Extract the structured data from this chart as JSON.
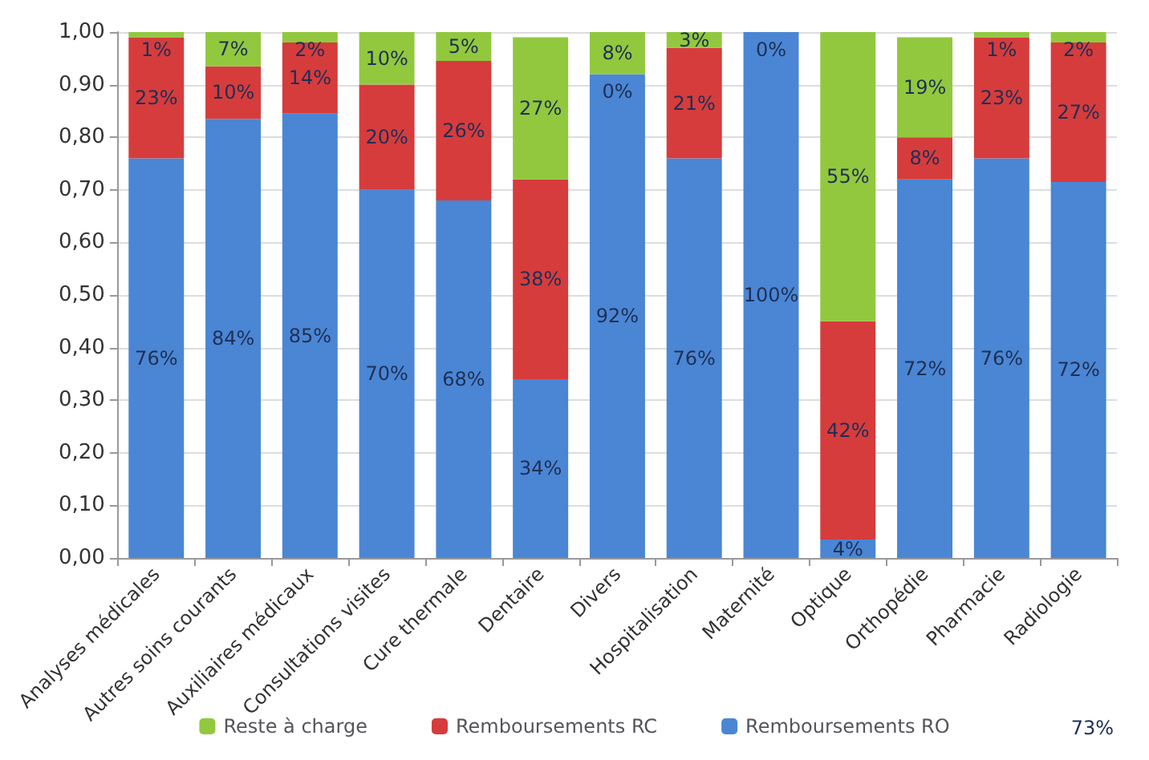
{
  "chart_data": {
    "type": "bar",
    "stacked": true,
    "categories": [
      "Analyses médicales",
      "Autres soins courants",
      "Auxiliaires médicaux",
      "Consultations visites",
      "Cure thermale",
      "Dentaire",
      "Divers",
      "Hospitalisation",
      "Maternité",
      "Optique",
      "Orthopédie",
      "Pharmacie",
      "Radiologie"
    ],
    "series": [
      {
        "name": "Remboursements RO",
        "color": "#4a86d4",
        "values": [
          0.76,
          0.835,
          0.845,
          0.7,
          0.68,
          0.34,
          0.92,
          0.76,
          1.0,
          0.035,
          0.72,
          0.76,
          0.715
        ],
        "value_labels": [
          "76%",
          "84%",
          "85%",
          "70%",
          "68%",
          "34%",
          "92%",
          "76%",
          "100%",
          "4%",
          "72%",
          "76%",
          "72%"
        ]
      },
      {
        "name": "Remboursements RC",
        "color": "#d63c3c",
        "values": [
          0.23,
          0.1,
          0.135,
          0.2,
          0.265,
          0.38,
          0,
          0.21,
          0,
          0.415,
          0.08,
          0.23,
          0.265
        ],
        "value_labels": [
          "23%",
          "10%",
          "14%",
          "20%",
          "26%",
          "38%",
          "0%",
          "21%",
          "0%",
          "42%",
          "8%",
          "23%",
          "27%"
        ]
      },
      {
        "name": "Reste à charge",
        "color": "#92c83e",
        "values": [
          0.01,
          0.065,
          0.02,
          0.1,
          0.055,
          0.27,
          0.08,
          0.03,
          0,
          0.55,
          0.19,
          0.01,
          0.02
        ],
        "value_labels": [
          "1%",
          "7%",
          "2%",
          "10%",
          "5%",
          "27%",
          "8%",
          "3%",
          null,
          "55%",
          "19%",
          "1%",
          "2%"
        ]
      }
    ],
    "annotations": [
      "73%"
    ],
    "ylim": [
      0,
      1
    ],
    "yticks": [
      {
        "value": 0,
        "label": "0,00"
      },
      {
        "value": 0.1,
        "label": "0,10"
      },
      {
        "value": 0.2,
        "label": "0,20"
      },
      {
        "value": 0.3,
        "label": "0,30"
      },
      {
        "value": 0.4,
        "label": "0,40"
      },
      {
        "value": 0.5,
        "label": "0,50"
      },
      {
        "value": 0.6,
        "label": "0,60"
      },
      {
        "value": 0.7,
        "label": "0,70"
      },
      {
        "value": 0.8,
        "label": "0,80"
      },
      {
        "value": 0.9,
        "label": "0,90"
      },
      {
        "value": 1,
        "label": "1,00"
      }
    ],
    "grid": "y",
    "legend": "bottom"
  }
}
